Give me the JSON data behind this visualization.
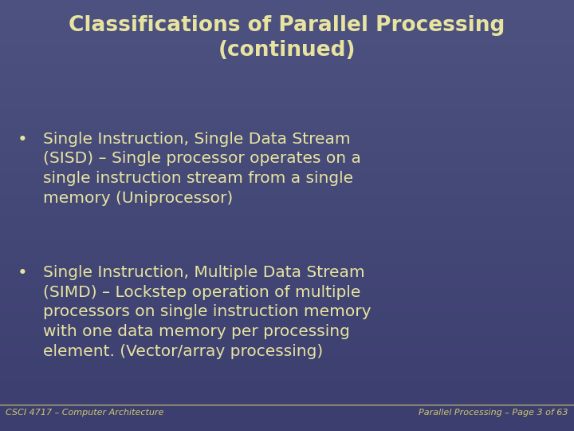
{
  "title_line1": "Classifications of Parallel Processing",
  "title_line2": "(continued)",
  "bullet1_line1": "Single Instruction, Single Data Stream",
  "bullet1_line2": "(SISD) – Single processor operates on a",
  "bullet1_line3": "single instruction stream from a single",
  "bullet1_line4": "memory (Uniprocessor)",
  "bullet2_line1": "Single Instruction, Multiple Data Stream",
  "bullet2_line2": "(SIMD) – Lockstep operation of multiple",
  "bullet2_line3": "processors on single instruction memory",
  "bullet2_line4": "with one data memory per processing",
  "bullet2_line5": "element. (Vector/array processing)",
  "footer_left": "CSCI 4717 – Computer Architecture",
  "footer_right": "Parallel Processing – Page 3 of 63",
  "bg_color_top": "#4d5280",
  "bg_color_bottom": "#3b3e6e",
  "title_color": "#e8e4a0",
  "bullet_color": "#e8e4a0",
  "footer_color": "#d4c870",
  "title_fontsize": 19,
  "bullet_fontsize": 14.5,
  "footer_fontsize": 8
}
